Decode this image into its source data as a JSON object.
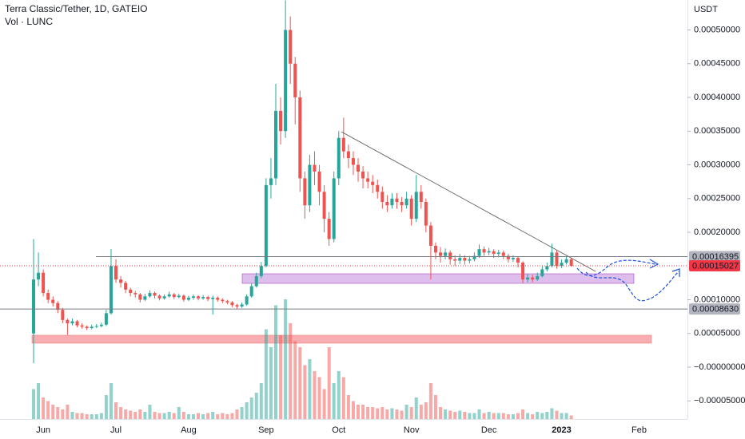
{
  "chart_data": {
    "type": "candlestick",
    "title": "Terra Classic/Tether, 1D, GATEIO",
    "volume_label": "Vol · LUNC",
    "y_label": "USDT",
    "up_color": "#26a69a",
    "down_color": "#ef5350",
    "ylim": [
      -7.69e-05,
      0.0005444
    ],
    "yticks": [
      {
        "value": 0.0005,
        "label": "0.00050000"
      },
      {
        "value": 0.00045,
        "label": "0.00045000"
      },
      {
        "value": 0.0004,
        "label": "0.00040000"
      },
      {
        "value": 0.00035,
        "label": "0.00035000"
      },
      {
        "value": 0.0003,
        "label": "0.00030000"
      },
      {
        "value": 0.00025,
        "label": "0.00025000"
      },
      {
        "value": 0.0002,
        "label": "0.00020000"
      },
      {
        "value": 0.0001,
        "label": "0.00010000"
      },
      {
        "value": 5e-05,
        "label": "0.00005000"
      },
      {
        "value": 0,
        "label": "−0.00000000"
      },
      {
        "value": -5e-05,
        "label": "−0.00005000"
      }
    ],
    "price_lines": [
      {
        "value": 0.00016395,
        "label": "0.00016395",
        "color": "#787b86",
        "tag_color": "#b2b5be",
        "text_color": "#131722",
        "dash": false
      },
      {
        "value": 0.00015027,
        "label": "0.00015027",
        "color": "#f23645",
        "tag_color": "#f23645",
        "text_color": "#ffffff",
        "dash": true
      },
      {
        "value": 8.63e-05,
        "label": "0.00008630",
        "color": "#787b86",
        "tag_color": "#b2b5be",
        "text_color": "#131722",
        "dash": false
      }
    ],
    "categories": [
      null,
      null,
      "Jun",
      null,
      null,
      null,
      null,
      null,
      null,
      null,
      null,
      null,
      null,
      null,
      null,
      null,
      null,
      "Jul",
      null,
      null,
      null,
      null,
      null,
      null,
      null,
      null,
      null,
      null,
      null,
      null,
      null,
      null,
      "Aug",
      null,
      null,
      null,
      null,
      null,
      null,
      null,
      null,
      null,
      null,
      null,
      null,
      null,
      null,
      null,
      "Sep",
      null,
      null,
      null,
      null,
      null,
      null,
      null,
      null,
      null,
      null,
      null,
      null,
      null,
      null,
      "Oct",
      null,
      null,
      null,
      null,
      null,
      null,
      null,
      null,
      null,
      null,
      null,
      null,
      null,
      null,
      "Nov",
      null,
      null,
      null,
      null,
      null,
      null,
      null,
      null,
      null,
      null,
      null,
      null,
      null,
      null,
      null,
      "Dec",
      null,
      null,
      null,
      null,
      null,
      null,
      null,
      null,
      null,
      null,
      null,
      null,
      null,
      null,
      "2023",
      null,
      null,
      null,
      null,
      null,
      null,
      null,
      null,
      null,
      null,
      null,
      null,
      null,
      null,
      null,
      "Feb",
      null,
      null
    ],
    "open": [
      5e-05,
      0.00013,
      0.00014,
      0.00011,
      0.0001,
      9.5e-05,
      8.5e-05,
      7e-05,
      6.5e-05,
      6.8e-05,
      6.2e-05,
      6e-05,
      5.8e-05,
      6e-05,
      6.1e-05,
      6.3e-05,
      8e-05,
      0.00015,
      0.00013,
      0.000125,
      0.000115,
      0.00011,
      0.000108,
      0.0001,
      0.000105,
      0.00011,
      0.000106,
      0.000102,
      0.000105,
      0.000108,
      0.000104,
      0.000106,
      0.0001,
      0.000103,
      0.000105,
      0.000102,
      0.000104,
      0.000101,
      0.000103,
      0.0001,
      9.8e-05,
      9.6e-05,
      9.2e-05,
      9e-05,
      9.3e-05,
      0.000105,
      0.00012,
      0.000135,
      0.00015,
      0.00027,
      0.00028,
      0.00038,
      0.00035,
      0.0005,
      0.00045,
      0.0004,
      0.00028,
      0.00024,
      0.0003,
      0.00029,
      0.00026,
      0.00022,
      0.00019,
      0.00028,
      0.00034,
      0.00032,
      0.00031,
      0.0003,
      0.00029,
      0.00028,
      0.000275,
      0.00027,
      0.00026,
      0.000245,
      0.00024,
      0.00025,
      0.000245,
      0.00024,
      0.00025,
      0.00022,
      0.00026,
      0.000245,
      0.00021,
      0.00018,
      0.00017,
      0.000165,
      0.00017,
      0.00016,
      0.000158,
      0.000162,
      0.000158,
      0.00016,
      0.000165,
      0.000175,
      0.00017,
      0.000172,
      0.000168,
      0.00017,
      0.000165,
      0.00016,
      0.000162,
      0.000155,
      0.00013,
      0.000133,
      0.00013,
      0.000135,
      0.000145,
      0.00015,
      0.00017,
      0.00015,
      0.000155,
      0.00016,
      null,
      null,
      null,
      null,
      null,
      null,
      null,
      null,
      null,
      null,
      null,
      null,
      null,
      null,
      null,
      null
    ],
    "high": [
      0.00019,
      0.00017,
      0.000145,
      0.000115,
      0.000105,
      9.8e-05,
      8.8e-05,
      7.2e-05,
      7.2e-05,
      7e-05,
      6.5e-05,
      6.2e-05,
      6.3e-05,
      6.4e-05,
      6.6e-05,
      8.5e-05,
      0.000175,
      0.00016,
      0.000135,
      0.000128,
      0.000118,
      0.000113,
      0.00011,
      0.000109,
      0.000114,
      0.000112,
      0.000108,
      0.000108,
      0.000112,
      0.00011,
      0.000109,
      0.000108,
      0.000106,
      0.000108,
      0.000107,
      0.000107,
      0.000106,
      0.000106,
      0.000105,
      0.000102,
      0.0001,
      9.8e-05,
      9.4e-05,
      9.6e-05,
      0.000108,
      0.000124,
      0.00014,
      0.000156,
      0.00028,
      0.00031,
      0.00042,
      0.0004,
      0.000544,
      0.00052,
      0.00046,
      0.00041,
      0.00029,
      0.000315,
      0.00032,
      0.0003,
      0.00027,
      0.00023,
      0.00029,
      0.00035,
      0.00037,
      0.00033,
      0.00032,
      0.00031,
      0.000298,
      0.00029,
      0.000285,
      0.000278,
      0.000268,
      0.000255,
      0.000258,
      0.000258,
      0.000252,
      0.00026,
      0.000255,
      0.000285,
      0.00027,
      0.00025,
      0.000215,
      0.000185,
      0.000178,
      0.000176,
      0.000173,
      0.000166,
      0.000168,
      0.000166,
      0.000165,
      0.00017,
      0.000182,
      0.000179,
      0.000177,
      0.000175,
      0.000174,
      0.000173,
      0.000168,
      0.000166,
      0.000164,
      0.000157,
      0.000138,
      0.000137,
      0.00014,
      0.00015,
      0.000155,
      0.000183,
      0.000173,
      0.00016,
      0.000164,
      0.000162,
      null,
      null,
      null,
      null,
      null,
      null,
      null,
      null,
      null,
      null,
      null,
      null,
      null,
      null,
      null,
      null
    ],
    "low": [
      6e-06,
      0.00012,
      0.000105,
      9.5e-05,
      9e-05,
      8e-05,
      6.5e-05,
      4.8e-05,
      6.2e-05,
      5.9e-05,
      5.7e-05,
      5.5e-05,
      5.6e-05,
      5.8e-05,
      5.9e-05,
      6.1e-05,
      7.8e-05,
      0.000125,
      0.000118,
      0.00011,
      0.000105,
      0.000103,
      9.6e-05,
      9.8e-05,
      0.000103,
      0.000102,
      9.9e-05,
      0.0001,
      0.000103,
      0.000101,
      0.000102,
      9.7e-05,
      9.8e-05,
      0.0001,
      9.9e-05,
      0.0001,
      9.8e-05,
      7.8e-05,
      9.7e-05,
      9.5e-05,
      9.3e-05,
      8.9e-05,
      8.6e-05,
      8.8e-05,
      9.1e-05,
      0.000103,
      0.000118,
      0.000132,
      0.000148,
      0.00025,
      0.00027,
      0.00033,
      0.00034,
      0.00042,
      0.00036,
      0.00026,
      0.00022,
      0.00023,
      0.00027,
      0.00024,
      0.0002,
      0.00018,
      0.000185,
      0.00027,
      0.00031,
      0.000295,
      0.000285,
      0.000275,
      0.000265,
      0.000265,
      0.000258,
      0.00025,
      0.000235,
      0.00023,
      0.000235,
      0.000235,
      0.00023,
      0.000235,
      0.00021,
      0.000215,
      0.000235,
      0.0002,
      0.00013,
      0.00016,
      0.000155,
      0.00016,
      0.000152,
      0.00015,
      0.000153,
      0.000152,
      0.000154,
      0.000157,
      0.000162,
      0.000165,
      0.000166,
      0.000162,
      0.000163,
      0.00016,
      0.000155,
      0.000156,
      0.000148,
      0.000125,
      0.000126,
      0.000126,
      0.000128,
      0.000133,
      0.000142,
      0.000148,
      0.000146,
      0.000147,
      0.000152,
      0.000149,
      null,
      null,
      null,
      null,
      null,
      null,
      null,
      null,
      null,
      null,
      null,
      null,
      null,
      null,
      null,
      null
    ],
    "close": [
      0.00013,
      0.00014,
      0.00011,
      0.0001,
      9.5e-05,
      8.5e-05,
      7e-05,
      6.5e-05,
      6.8e-05,
      6.2e-05,
      6e-05,
      5.8e-05,
      6e-05,
      6.1e-05,
      6.3e-05,
      8e-05,
      0.00015,
      0.00013,
      0.000125,
      0.000115,
      0.00011,
      0.000108,
      0.0001,
      0.000105,
      0.00011,
      0.000106,
      0.000102,
      0.000105,
      0.000108,
      0.000104,
      0.000106,
      0.0001,
      0.000103,
      0.000105,
      0.000102,
      0.000104,
      0.000101,
      0.000103,
      0.0001,
      9.8e-05,
      9.6e-05,
      9.2e-05,
      9e-05,
      9.3e-05,
      0.000105,
      0.00012,
      0.000135,
      0.00015,
      0.00027,
      0.00028,
      0.00038,
      0.00035,
      0.0005,
      0.00045,
      0.0004,
      0.00028,
      0.00024,
      0.0003,
      0.00029,
      0.00026,
      0.00022,
      0.00019,
      0.00028,
      0.00034,
      0.00032,
      0.00031,
      0.0003,
      0.00029,
      0.00028,
      0.000275,
      0.00027,
      0.00026,
      0.000245,
      0.00024,
      0.00025,
      0.000245,
      0.00024,
      0.00025,
      0.00022,
      0.00026,
      0.000245,
      0.00021,
      0.00018,
      0.00017,
      0.000165,
      0.00017,
      0.00016,
      0.000158,
      0.000162,
      0.000158,
      0.00016,
      0.000165,
      0.000175,
      0.00017,
      0.000172,
      0.000168,
      0.00017,
      0.000165,
      0.00016,
      0.000162,
      0.000155,
      0.00013,
      0.000133,
      0.00013,
      0.000135,
      0.000145,
      0.00015,
      0.00017,
      0.00015,
      0.000155,
      0.00016,
      0.00015027,
      null,
      null,
      null,
      null,
      null,
      null,
      null,
      null,
      null,
      null,
      null,
      null,
      null,
      null,
      null,
      null
    ],
    "volume": [
      25,
      30,
      18,
      15,
      12,
      10,
      8,
      12,
      6,
      5,
      5,
      4,
      4,
      4,
      5,
      20,
      30,
      14,
      10,
      8,
      7,
      6,
      8,
      6,
      12,
      6,
      5,
      5,
      6,
      5,
      10,
      6,
      4,
      4,
      5,
      4,
      5,
      6,
      4,
      5,
      4,
      5,
      8,
      10,
      14,
      18,
      22,
      30,
      75,
      60,
      95,
      70,
      100,
      80,
      65,
      60,
      45,
      50,
      40,
      35,
      25,
      60,
      30,
      40,
      35,
      20,
      15,
      12,
      12,
      10,
      10,
      9,
      10,
      8,
      9,
      8,
      7,
      12,
      10,
      18,
      12,
      14,
      30,
      20,
      10,
      8,
      7,
      6,
      7,
      6,
      5,
      5,
      8,
      5,
      6,
      5,
      5,
      5,
      4,
      4,
      5,
      8,
      5,
      4,
      6,
      5,
      6,
      9,
      7,
      5,
      5,
      3,
      null,
      null,
      null,
      null,
      null,
      null,
      null,
      null,
      null,
      null,
      null,
      null,
      null,
      null,
      null,
      null
    ]
  }
}
